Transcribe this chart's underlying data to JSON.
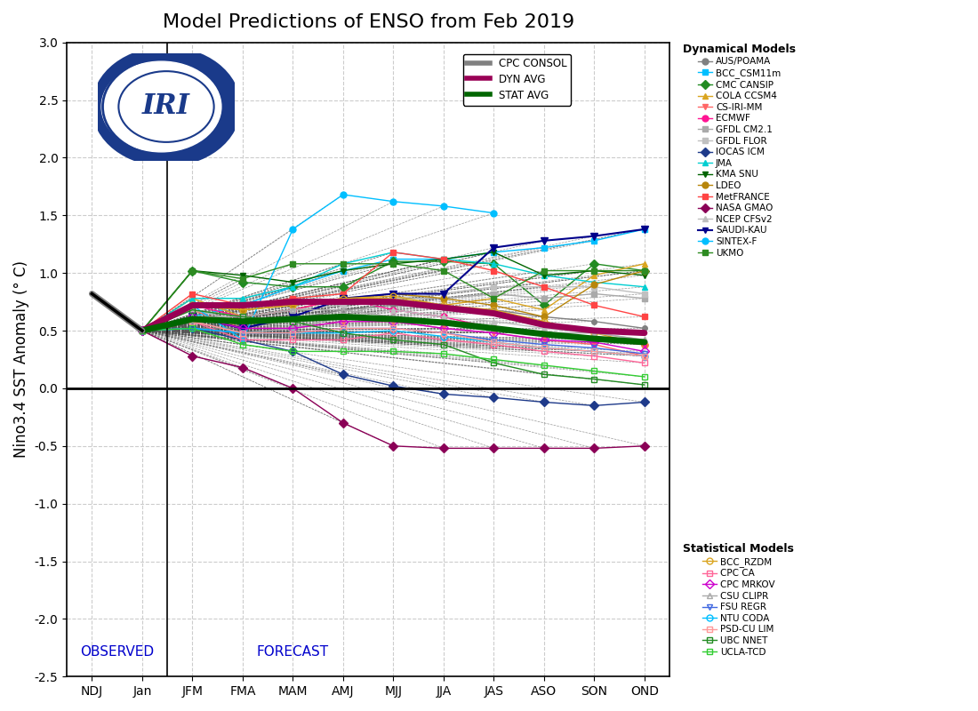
{
  "title": "Model Predictions of ENSO from Feb 2019",
  "ylabel": "Nino3.4 SST Anomaly (° C)",
  "xlabels": [
    "NDJ",
    "Jan",
    "JFM",
    "FMA",
    "MAM",
    "AMJ",
    "MJJ",
    "JJA",
    "JAS",
    "ASO",
    "SON",
    "OND"
  ],
  "ylim": [
    -2.5,
    3.0
  ],
  "yticks": [
    -2.5,
    -2.0,
    -1.5,
    -1.0,
    -0.5,
    0.0,
    0.5,
    1.0,
    1.5,
    2.0,
    2.5,
    3.0
  ],
  "observed_label": "OBSERVED",
  "forecast_label": "FORECAST",
  "cpc_consol": [
    0.82,
    0.5,
    null,
    null,
    null,
    null,
    null,
    null,
    null,
    null,
    null,
    null
  ],
  "dyn_avg": [
    null,
    0.5,
    0.72,
    0.72,
    0.75,
    0.75,
    0.75,
    0.7,
    0.65,
    0.55,
    0.5,
    0.48
  ],
  "stat_avg": [
    null,
    0.5,
    0.6,
    0.58,
    0.6,
    0.62,
    0.6,
    0.57,
    0.52,
    0.47,
    0.43,
    0.4
  ],
  "dynamical_models": {
    "AUS/POAMA": {
      "color": "#808080",
      "marker": "o",
      "lw": 1.0,
      "ms": 4,
      "values": [
        null,
        0.5,
        0.52,
        0.52,
        0.6,
        0.68,
        0.72,
        0.7,
        0.68,
        0.62,
        0.58,
        0.52
      ]
    },
    "BCC_CSM11m": {
      "color": "#00BFFF",
      "marker": "s",
      "lw": 1.0,
      "ms": 4,
      "values": [
        null,
        0.5,
        0.62,
        0.72,
        0.88,
        1.02,
        1.12,
        1.12,
        1.18,
        1.22,
        1.28,
        1.38
      ]
    },
    "CMC CANSIP": {
      "color": "#228B22",
      "marker": "D",
      "lw": 1.0,
      "ms": 5,
      "values": [
        null,
        0.5,
        1.02,
        0.92,
        0.88,
        0.88,
        1.1,
        1.1,
        1.08,
        0.72,
        1.08,
        1.02
      ]
    },
    "COLA CCSM4": {
      "color": "#DAA520",
      "marker": "^",
      "lw": 1.0,
      "ms": 5,
      "values": [
        null,
        0.5,
        0.78,
        0.62,
        0.68,
        0.78,
        0.78,
        0.72,
        0.78,
        0.68,
        0.98,
        1.08
      ]
    },
    "CS-IRI-MM": {
      "color": "#FF6666",
      "marker": "v",
      "lw": 1.0,
      "ms": 5,
      "values": [
        null,
        0.5,
        0.68,
        0.52,
        0.52,
        0.58,
        0.58,
        0.52,
        0.48,
        0.42,
        0.38,
        0.28
      ]
    },
    "ECMWF": {
      "color": "#FF1493",
      "marker": "o",
      "lw": 1.0,
      "ms": 5,
      "values": [
        null,
        0.5,
        0.72,
        0.62,
        0.68,
        0.78,
        0.68,
        0.62,
        0.52,
        0.48,
        0.42,
        0.38
      ]
    },
    "GFDL CM2.1": {
      "color": "#AAAAAA",
      "marker": "s",
      "lw": 1.0,
      "ms": 4,
      "values": [
        null,
        0.5,
        0.58,
        0.48,
        0.52,
        0.62,
        0.78,
        0.78,
        0.82,
        0.78,
        0.82,
        0.78
      ]
    },
    "GFDL FLOR": {
      "color": "#C0C0C0",
      "marker": "s",
      "lw": 1.0,
      "ms": 4,
      "values": [
        null,
        0.5,
        0.68,
        0.62,
        0.68,
        0.72,
        0.78,
        0.82,
        0.88,
        0.88,
        0.88,
        0.82
      ]
    },
    "IOCAS ICM": {
      "color": "#1E3A8A",
      "marker": "D",
      "lw": 1.0,
      "ms": 5,
      "values": [
        null,
        0.5,
        0.52,
        0.42,
        0.32,
        0.12,
        0.02,
        -0.05,
        -0.08,
        -0.12,
        -0.15,
        -0.12
      ]
    },
    "JMA": {
      "color": "#00CED1",
      "marker": "^",
      "lw": 1.0,
      "ms": 5,
      "values": [
        null,
        0.5,
        0.78,
        0.78,
        0.88,
        1.08,
        1.18,
        1.12,
        1.08,
        0.98,
        0.92,
        0.88
      ]
    },
    "KMA SNU": {
      "color": "#006400",
      "marker": "v",
      "lw": 1.0,
      "ms": 5,
      "values": [
        null,
        0.5,
        1.02,
        0.98,
        0.92,
        1.02,
        1.08,
        1.12,
        1.18,
        0.98,
        1.02,
        0.98
      ]
    },
    "LDEO": {
      "color": "#B8860B",
      "marker": "o",
      "lw": 1.0,
      "ms": 5,
      "values": [
        null,
        0.5,
        0.72,
        0.68,
        0.72,
        0.78,
        0.82,
        0.78,
        0.72,
        0.62,
        0.9,
        1.02
      ]
    },
    "MetFRANCE": {
      "color": "#FF4444",
      "marker": "s",
      "lw": 1.0,
      "ms": 4,
      "values": [
        null,
        0.5,
        0.82,
        0.72,
        0.78,
        0.82,
        1.18,
        1.12,
        1.02,
        0.88,
        0.72,
        0.62
      ]
    },
    "NASA GMAO": {
      "color": "#8B0057",
      "marker": "D",
      "lw": 1.0,
      "ms": 5,
      "values": [
        null,
        0.5,
        0.28,
        0.18,
        0.0,
        -0.3,
        -0.5,
        -0.52,
        -0.52,
        -0.52,
        -0.52,
        -0.5
      ]
    },
    "NCEP CFSv2": {
      "color": "#BEBEBE",
      "marker": "^",
      "lw": 1.0,
      "ms": 4,
      "values": [
        null,
        0.5,
        0.68,
        0.58,
        0.58,
        0.62,
        0.68,
        0.62,
        0.58,
        0.52,
        0.48,
        0.42
      ]
    },
    "SAUDI-KAU": {
      "color": "#00008B",
      "marker": "v",
      "lw": 1.5,
      "ms": 6,
      "values": [
        null,
        0.5,
        0.62,
        0.52,
        0.62,
        0.78,
        0.82,
        0.82,
        1.22,
        1.28,
        1.32,
        1.38
      ]
    },
    "SINTEX-F": {
      "color": "#00BFFF",
      "marker": "o",
      "lw": 1.0,
      "ms": 5,
      "values": [
        null,
        0.5,
        0.72,
        0.42,
        1.38,
        1.68,
        1.62,
        1.58,
        1.52,
        null,
        null,
        null
      ]
    },
    "UKMO": {
      "color": "#2E8B22",
      "marker": "s",
      "lw": 1.0,
      "ms": 5,
      "values": [
        null,
        0.5,
        1.02,
        0.95,
        1.08,
        1.08,
        1.08,
        1.02,
        0.78,
        1.02,
        1.02,
        1.02
      ]
    }
  },
  "statistical_models": {
    "BCC_RZDM": {
      "color": "#DAA520",
      "marker": "o",
      "lw": 1.0,
      "ms": 5,
      "values": [
        null,
        0.5,
        0.72,
        0.68,
        0.72,
        0.78,
        0.8,
        0.72,
        0.68,
        0.58,
        0.48,
        0.38
      ]
    },
    "CPC CA": {
      "color": "#FF6699",
      "marker": "s",
      "lw": 1.0,
      "ms": 5,
      "values": [
        null,
        0.5,
        0.58,
        0.42,
        0.42,
        0.42,
        0.48,
        0.42,
        0.38,
        0.32,
        0.28,
        0.22
      ]
    },
    "CPC MRKOV": {
      "color": "#CC00CC",
      "marker": "D",
      "lw": 1.0,
      "ms": 5,
      "values": [
        null,
        0.5,
        0.62,
        0.52,
        0.52,
        0.58,
        0.58,
        0.52,
        0.48,
        0.42,
        0.4,
        0.32
      ]
    },
    "CSU CLIPR": {
      "color": "#AAAAAA",
      "marker": "^",
      "lw": 1.0,
      "ms": 5,
      "values": [
        null,
        0.5,
        0.62,
        0.62,
        0.68,
        0.68,
        0.62,
        0.58,
        0.52,
        0.48,
        0.48,
        0.42
      ]
    },
    "FSU REGR": {
      "color": "#4169E1",
      "marker": "v",
      "lw": 1.0,
      "ms": 5,
      "values": [
        null,
        0.5,
        0.52,
        0.48,
        0.48,
        0.52,
        0.52,
        0.48,
        0.42,
        0.38,
        0.35,
        0.3
      ]
    },
    "NTU CODA": {
      "color": "#00BFFF",
      "marker": "o",
      "lw": 1.0,
      "ms": 5,
      "values": [
        null,
        0.5,
        0.52,
        0.48,
        0.48,
        0.48,
        0.5,
        0.45,
        0.4,
        0.35,
        0.32,
        0.28
      ]
    },
    "PSD-CU LIM": {
      "color": "#FF9999",
      "marker": "s",
      "lw": 1.0,
      "ms": 5,
      "values": [
        null,
        0.5,
        0.58,
        0.48,
        0.48,
        0.52,
        0.52,
        0.48,
        0.4,
        0.35,
        0.32,
        0.28
      ]
    },
    "UBC NNET": {
      "color": "#228B22",
      "marker": "s",
      "lw": 1.0,
      "ms": 5,
      "values": [
        null,
        0.5,
        0.68,
        0.62,
        0.58,
        0.48,
        0.42,
        0.38,
        0.22,
        0.12,
        0.08,
        0.03
      ]
    },
    "UCLA-TCD": {
      "color": "#32CD32",
      "marker": "s",
      "lw": 1.0,
      "ms": 5,
      "values": [
        null,
        0.5,
        0.52,
        0.38,
        0.32,
        0.32,
        0.32,
        0.3,
        0.25,
        0.2,
        0.15,
        0.1
      ]
    }
  },
  "background_color": "#ffffff",
  "grid_color": "#CCCCCC",
  "dyn_avg_color": "#990055",
  "stat_avg_color": "#006600",
  "cpc_consol_color": "#808080"
}
